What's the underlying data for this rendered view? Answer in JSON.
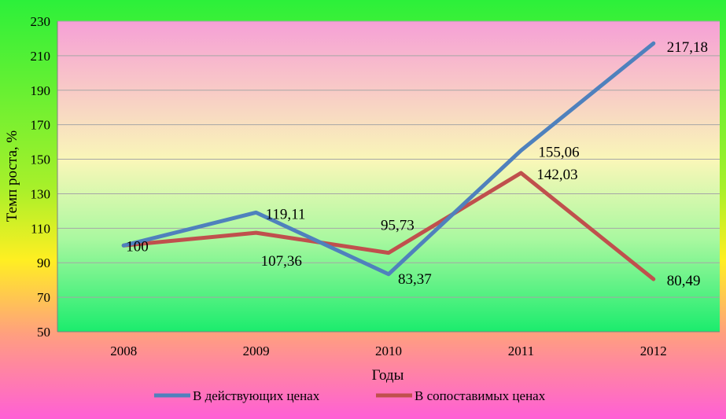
{
  "chart_data": {
    "type": "line",
    "title": "",
    "xlabel": "Годы",
    "ylabel": "Темп роста, %",
    "ylim": [
      50,
      230
    ],
    "yticks": [
      50,
      70,
      90,
      110,
      130,
      150,
      170,
      190,
      210,
      230
    ],
    "categories": [
      "2008",
      "2009",
      "2010",
      "2011",
      "2012"
    ],
    "grid": true,
    "legend": "bottom",
    "series": [
      {
        "name": "В действующих ценах",
        "color": "#4f81bd",
        "values": [
          100,
          119.11,
          83.37,
          155.06,
          217.18
        ],
        "labels": [
          "100",
          "119,11",
          "83,37",
          "155,06",
          "217,18"
        ]
      },
      {
        "name": "В сопоставимых ценах",
        "color": "#c0504d",
        "values": [
          100,
          107.36,
          95.73,
          142.03,
          80.49
        ],
        "labels": [
          "",
          "107,36",
          "95,73",
          "142,03",
          "80,49"
        ]
      }
    ]
  }
}
